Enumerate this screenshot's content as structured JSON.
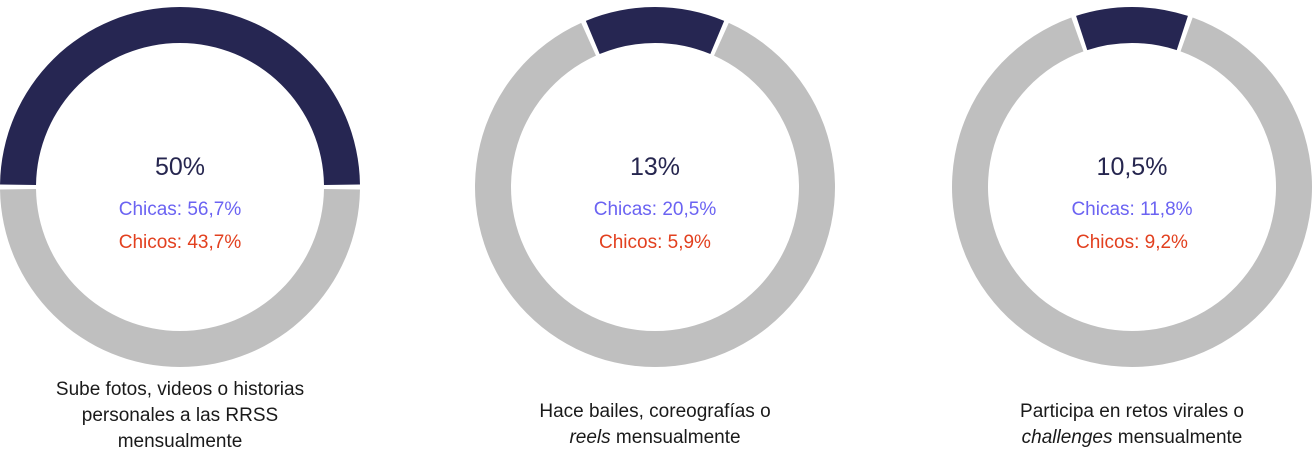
{
  "colors": {
    "highlight": "#262652",
    "remainder": "#bfbfbf",
    "girls": "#6b63f2",
    "boys": "#e2401f"
  },
  "chart_data": [
    {
      "type": "pie",
      "values": [
        50,
        50
      ],
      "total": "50%",
      "girls": "Chicas: 56,7%",
      "boys": "Chicos: 43,7%",
      "caption_lines": [
        [
          {
            "text": "Sube fotos, videos o historias",
            "italic": false
          }
        ],
        [
          {
            "text": "personales a las RRSS",
            "italic": false
          }
        ],
        [
          {
            "text": "mensualmente",
            "italic": false
          }
        ]
      ]
    },
    {
      "type": "pie",
      "values": [
        13,
        87
      ],
      "total": "13%",
      "girls": "Chicas: 20,5%",
      "boys": "Chicos: 5,9%",
      "caption_lines": [
        [
          {
            "text": "Hace bailes, coreografías o",
            "italic": false
          }
        ],
        [
          {
            "text": "reels",
            "italic": true
          },
          {
            "text": " mensualmente",
            "italic": false
          }
        ]
      ]
    },
    {
      "type": "pie",
      "values": [
        10.5,
        89.5
      ],
      "total": "10,5%",
      "girls": "Chicas: 11,8%",
      "boys": "Chicos: 9,2%",
      "caption_lines": [
        [
          {
            "text": "Participa en retos virales o",
            "italic": false
          }
        ],
        [
          {
            "text": "challenges",
            "italic": true
          },
          {
            "text": " mensualmente",
            "italic": false
          }
        ]
      ]
    }
  ]
}
